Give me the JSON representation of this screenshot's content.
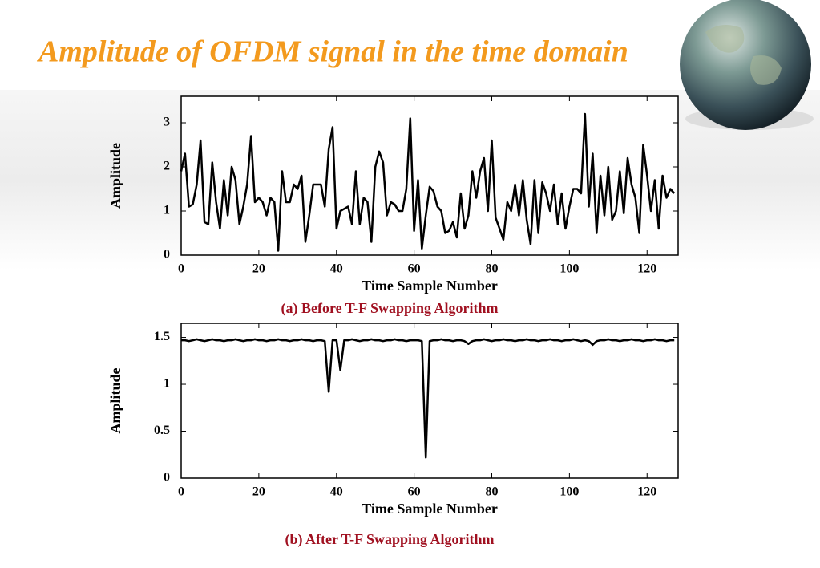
{
  "title": "Amplitude of OFDM signal in the time domain",
  "chart_data": [
    {
      "type": "line",
      "xlabel": "Time Sample Number",
      "ylabel": "Amplitude",
      "caption": "(a) Before T-F Swapping Algorithm",
      "xlim": [
        0,
        128
      ],
      "ylim": [
        0,
        3.6
      ],
      "xticks": [
        0,
        20,
        40,
        60,
        80,
        100,
        120
      ],
      "yticks": [
        0,
        1,
        2,
        3
      ],
      "color": "#000000",
      "values": [
        1.9,
        2.3,
        1.1,
        1.15,
        1.6,
        2.6,
        0.75,
        0.7,
        2.1,
        1.2,
        0.6,
        1.7,
        0.9,
        2.0,
        1.7,
        0.7,
        1.1,
        1.6,
        2.7,
        1.2,
        1.3,
        1.2,
        0.9,
        1.3,
        1.2,
        0.1,
        1.9,
        1.2,
        1.2,
        1.6,
        1.5,
        1.8,
        0.3,
        0.9,
        1.6,
        1.6,
        1.6,
        1.1,
        2.4,
        2.9,
        0.6,
        1.0,
        1.05,
        1.1,
        0.7,
        1.9,
        0.7,
        1.3,
        1.2,
        0.3,
        2.0,
        2.35,
        2.1,
        0.9,
        1.2,
        1.15,
        1.0,
        1.0,
        1.5,
        3.1,
        0.55,
        1.7,
        0.15,
        0.9,
        1.55,
        1.45,
        1.1,
        1.0,
        0.5,
        0.55,
        0.75,
        0.4,
        1.4,
        0.6,
        0.9,
        1.9,
        1.3,
        1.9,
        2.2,
        1.0,
        2.6,
        0.85,
        0.6,
        0.35,
        1.2,
        1.0,
        1.6,
        0.9,
        1.7,
        0.8,
        0.25,
        1.7,
        0.5,
        1.65,
        1.4,
        1.0,
        1.6,
        0.7,
        1.4,
        0.6,
        1.1,
        1.5,
        1.5,
        1.4,
        3.2,
        1.1,
        2.3,
        0.5,
        1.8,
        0.9,
        2.0,
        0.8,
        1.0,
        1.9,
        0.95,
        2.2,
        1.6,
        1.3,
        0.5,
        2.5,
        1.8,
        1.0,
        1.7,
        0.6,
        1.8,
        1.3,
        1.5,
        1.4
      ]
    },
    {
      "type": "line",
      "xlabel": "Time Sample Number",
      "ylabel": "Amplitude",
      "caption": "(b) After T-F Swapping Algorithm",
      "xlim": [
        0,
        128
      ],
      "ylim": [
        0,
        1.65
      ],
      "xticks": [
        0,
        20,
        40,
        60,
        80,
        100,
        120
      ],
      "yticks": [
        0,
        0.5,
        1,
        1.5
      ],
      "color": "#000000",
      "values": [
        1.47,
        1.47,
        1.46,
        1.47,
        1.48,
        1.47,
        1.46,
        1.47,
        1.48,
        1.47,
        1.47,
        1.46,
        1.47,
        1.47,
        1.48,
        1.47,
        1.46,
        1.47,
        1.47,
        1.48,
        1.47,
        1.47,
        1.46,
        1.47,
        1.47,
        1.48,
        1.47,
        1.47,
        1.46,
        1.47,
        1.47,
        1.48,
        1.47,
        1.47,
        1.46,
        1.47,
        1.47,
        1.46,
        0.92,
        1.47,
        1.47,
        1.15,
        1.47,
        1.47,
        1.48,
        1.47,
        1.46,
        1.47,
        1.47,
        1.48,
        1.47,
        1.47,
        1.46,
        1.47,
        1.47,
        1.48,
        1.47,
        1.47,
        1.46,
        1.47,
        1.47,
        1.47,
        1.46,
        0.22,
        1.46,
        1.47,
        1.47,
        1.48,
        1.47,
        1.47,
        1.46,
        1.47,
        1.47,
        1.46,
        1.43,
        1.46,
        1.47,
        1.47,
        1.48,
        1.47,
        1.46,
        1.47,
        1.47,
        1.48,
        1.47,
        1.47,
        1.46,
        1.47,
        1.47,
        1.48,
        1.47,
        1.47,
        1.46,
        1.47,
        1.47,
        1.48,
        1.47,
        1.47,
        1.46,
        1.47,
        1.47,
        1.48,
        1.47,
        1.46,
        1.47,
        1.46,
        1.42,
        1.46,
        1.47,
        1.47,
        1.48,
        1.47,
        1.47,
        1.46,
        1.47,
        1.47,
        1.48,
        1.47,
        1.47,
        1.46,
        1.47,
        1.47,
        1.48,
        1.47,
        1.47,
        1.46,
        1.47,
        1.47
      ]
    }
  ]
}
